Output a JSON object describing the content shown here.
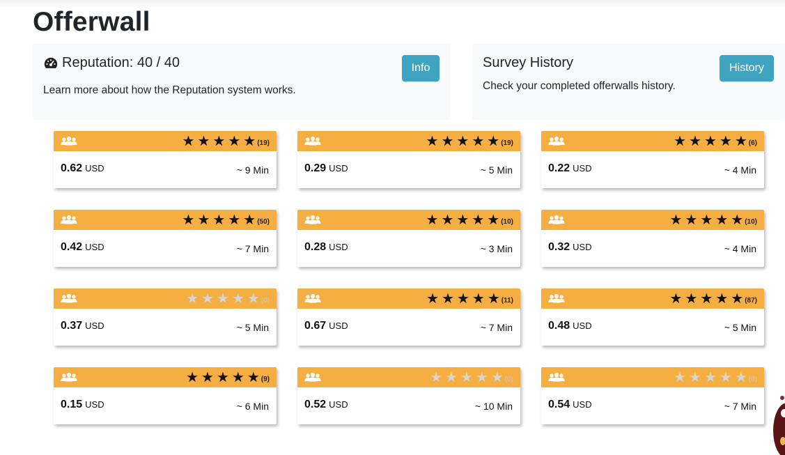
{
  "page": {
    "title": "Offerwall"
  },
  "reputation": {
    "icon": "gauge-icon",
    "heading": "Reputation: 40 / 40",
    "description": "Learn more about how the Reputation system works.",
    "button_label": "Info"
  },
  "history": {
    "heading": "Survey History",
    "description": "Check your completed offerwalls history.",
    "button_label": "History"
  },
  "colors": {
    "card_header": "#f4ae42",
    "button": "#3fa4bf",
    "panel_bg": "#f8f9fa"
  },
  "offers": [
    {
      "amount": "0.62",
      "currency": "USD",
      "time": "~ 9 Min",
      "rating": 5,
      "rating_count": "(19)"
    },
    {
      "amount": "0.29",
      "currency": "USD",
      "time": "~ 5 Min",
      "rating": 5,
      "rating_count": "(19)"
    },
    {
      "amount": "0.22",
      "currency": "USD",
      "time": "~ 4 Min",
      "rating": 5,
      "rating_count": "(6)"
    },
    {
      "amount": "0.42",
      "currency": "USD",
      "time": "~ 7 Min",
      "rating": 5,
      "rating_count": "(50)"
    },
    {
      "amount": "0.28",
      "currency": "USD",
      "time": "~ 3 Min",
      "rating": 5,
      "rating_count": "(10)"
    },
    {
      "amount": "0.32",
      "currency": "USD",
      "time": "~ 4 Min",
      "rating": 5,
      "rating_count": "(10)"
    },
    {
      "amount": "0.37",
      "currency": "USD",
      "time": "~ 5 Min",
      "rating": 0,
      "rating_count": "(0)"
    },
    {
      "amount": "0.67",
      "currency": "USD",
      "time": "~ 7 Min",
      "rating": 5,
      "rating_count": "(11)"
    },
    {
      "amount": "0.48",
      "currency": "USD",
      "time": "~ 5 Min",
      "rating": 5,
      "rating_count": "(87)"
    },
    {
      "amount": "0.15",
      "currency": "USD",
      "time": "~ 6 Min",
      "rating": 5,
      "rating_count": "(9)"
    },
    {
      "amount": "0.52",
      "currency": "USD",
      "time": "~ 10 Min",
      "rating": 0,
      "rating_count": "(0)"
    },
    {
      "amount": "0.54",
      "currency": "USD",
      "time": "~ 7 Min",
      "rating": 0,
      "rating_count": "(0)"
    }
  ]
}
